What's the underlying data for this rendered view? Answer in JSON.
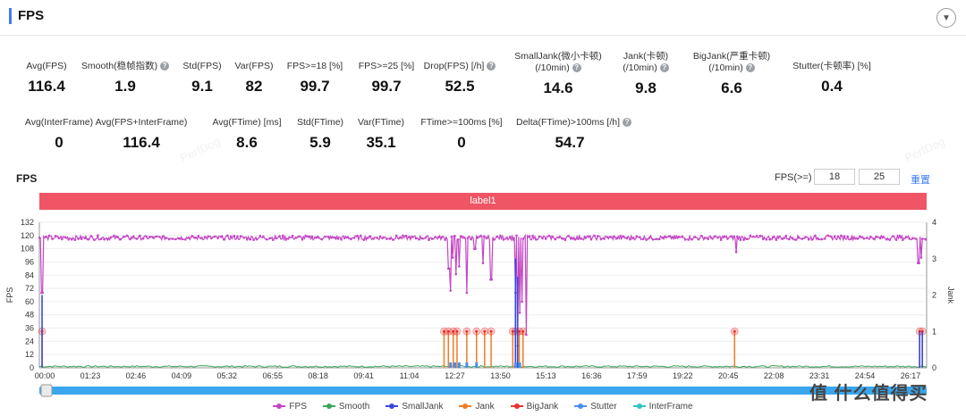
{
  "header": {
    "title": "FPS",
    "collapse_icon": "▼"
  },
  "metrics_row1": [
    {
      "label": "Avg(FPS)",
      "value": "116.4",
      "help": false
    },
    {
      "label": "Smooth(稳帧指数)",
      "value": "1.9",
      "help": true
    },
    {
      "label": "Std(FPS)",
      "value": "9.1",
      "help": false
    },
    {
      "label": "Var(FPS)",
      "value": "82",
      "help": false
    },
    {
      "label": "FPS>=18 [%]",
      "value": "99.7",
      "help": false
    },
    {
      "label": "FPS>=25 [%]",
      "value": "99.7",
      "help": false
    },
    {
      "label": "Drop(FPS) [/h]",
      "value": "52.5",
      "help": true
    },
    {
      "label": "SmallJank(微小卡顿)",
      "label2": "(/10min)",
      "value": "14.6",
      "help": true
    },
    {
      "label": "Jank(卡顿)",
      "label2": "(/10min)",
      "value": "9.8",
      "help": true
    },
    {
      "label": "BigJank(严重卡顿)",
      "label2": "(/10min)",
      "value": "6.6",
      "help": true
    },
    {
      "label": "Stutter(卡顿率) [%]",
      "value": "0.4",
      "help": false
    }
  ],
  "metrics_row2": [
    {
      "label": "Avg(InterFrame)",
      "value": "0",
      "help": false
    },
    {
      "label": "Avg(FPS+InterFrame)",
      "value": "116.4",
      "help": false
    },
    {
      "label": "Avg(FTime) [ms]",
      "value": "8.6",
      "help": false
    },
    {
      "label": "Std(FTime)",
      "value": "5.9",
      "help": false
    },
    {
      "label": "Var(FTime)",
      "value": "35.1",
      "help": false
    },
    {
      "label": "FTime>=100ms [%]",
      "value": "0",
      "help": false
    },
    {
      "label": "Delta(FTime)>100ms [/h]",
      "value": "54.7",
      "help": true
    }
  ],
  "chart_section": {
    "title": "FPS",
    "filter_label": "FPS(>=)",
    "filter_values": [
      "18",
      "25"
    ],
    "reset_label": "重置",
    "label_bar": "label1",
    "watermark": "PerfDog"
  },
  "chart_data": {
    "type": "line",
    "ylabel": "FPS",
    "y2label": "Jank",
    "ylim": [
      0,
      132
    ],
    "y2lim": [
      0,
      4
    ],
    "yticks": [
      "0",
      "12",
      "24",
      "36",
      "48",
      "60",
      "72",
      "84",
      "96",
      "108",
      "120",
      "132"
    ],
    "y2ticks": [
      "0",
      "1",
      "2",
      "3",
      "4"
    ],
    "xticks": [
      "00:00",
      "01:23",
      "02:46",
      "04:09",
      "05:32",
      "06:55",
      "08:18",
      "09:41",
      "11:04",
      "12:27",
      "13:50",
      "15:13",
      "16:36",
      "17:59",
      "19:22",
      "20:45",
      "22:08",
      "23:31",
      "24:54",
      "26:17"
    ],
    "duration_s": 1640,
    "fps_baseline": 118,
    "fps_dips": [
      {
        "t": 5,
        "v": 68
      },
      {
        "t": 757,
        "v": 90
      },
      {
        "t": 760,
        "v": 70
      },
      {
        "t": 764,
        "v": 100
      },
      {
        "t": 770,
        "v": 85
      },
      {
        "t": 776,
        "v": 92
      },
      {
        "t": 790,
        "v": 68
      },
      {
        "t": 805,
        "v": 108
      },
      {
        "t": 820,
        "v": 95
      },
      {
        "t": 835,
        "v": 80
      },
      {
        "t": 880,
        "v": 68
      },
      {
        "t": 884,
        "v": 20
      },
      {
        "t": 888,
        "v": 50
      },
      {
        "t": 892,
        "v": 60
      },
      {
        "t": 900,
        "v": 30
      },
      {
        "t": 1288,
        "v": 105
      },
      {
        "t": 1625,
        "v": 95
      },
      {
        "t": 1630,
        "v": 100
      }
    ],
    "jank_events": [
      5,
      748,
      756,
      765,
      772,
      790,
      808,
      823,
      835,
      875,
      880,
      887,
      894,
      1285,
      1627,
      1632
    ],
    "series": [
      {
        "name": "FPS",
        "color": "#c446c6"
      },
      {
        "name": "Smooth",
        "color": "#3aa757"
      },
      {
        "name": "SmallJank",
        "color": "#3b4ad6"
      },
      {
        "name": "Jank",
        "color": "#f07d24"
      },
      {
        "name": "BigJank",
        "color": "#e8322e"
      },
      {
        "name": "Stutter",
        "color": "#4a8ef0"
      },
      {
        "name": "InterFrame",
        "color": "#31c2c6"
      }
    ]
  },
  "brand": "值 什么值得买"
}
